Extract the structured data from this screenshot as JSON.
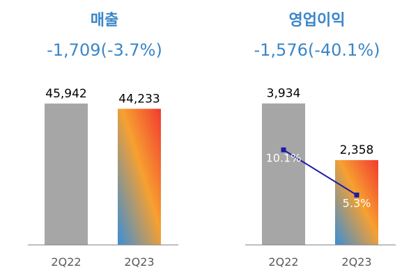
{
  "chart_data": [
    {
      "type": "bar",
      "title": "매출",
      "subtitle": "-1,709(-3.7%)",
      "categories": [
        "2Q22",
        "2Q23"
      ],
      "values": [
        45942,
        44233
      ],
      "value_labels": [
        "45,942",
        "44,233"
      ],
      "ylim": [
        0,
        52000
      ],
      "grid": false
    },
    {
      "type": "bar",
      "title": "영업이익",
      "subtitle": "-1,576(-40.1%)",
      "categories": [
        "2Q22",
        "2Q23"
      ],
      "values": [
        3934,
        2358
      ],
      "value_labels": [
        "3,934",
        "2,358"
      ],
      "ylim": [
        0,
        4450
      ],
      "grid": false,
      "overlay_line": {
        "type": "line",
        "values": [
          10.1,
          5.3
        ],
        "value_labels": [
          "10.1%",
          "5.3%"
        ],
        "ylim": [
          0,
          19
        ]
      }
    }
  ],
  "colors": {
    "title": "#3a86c8",
    "bar_prior": "#a6a6a6",
    "gradient_top": "#f23a2f",
    "gradient_mid": "#f7a030",
    "gradient_bottom": "#3b8ed6",
    "line": "#1c1ca8",
    "axis": "#7f7f7f",
    "tick_label": "#595959",
    "value_label": "#000000",
    "line_label": "#ffffff"
  }
}
